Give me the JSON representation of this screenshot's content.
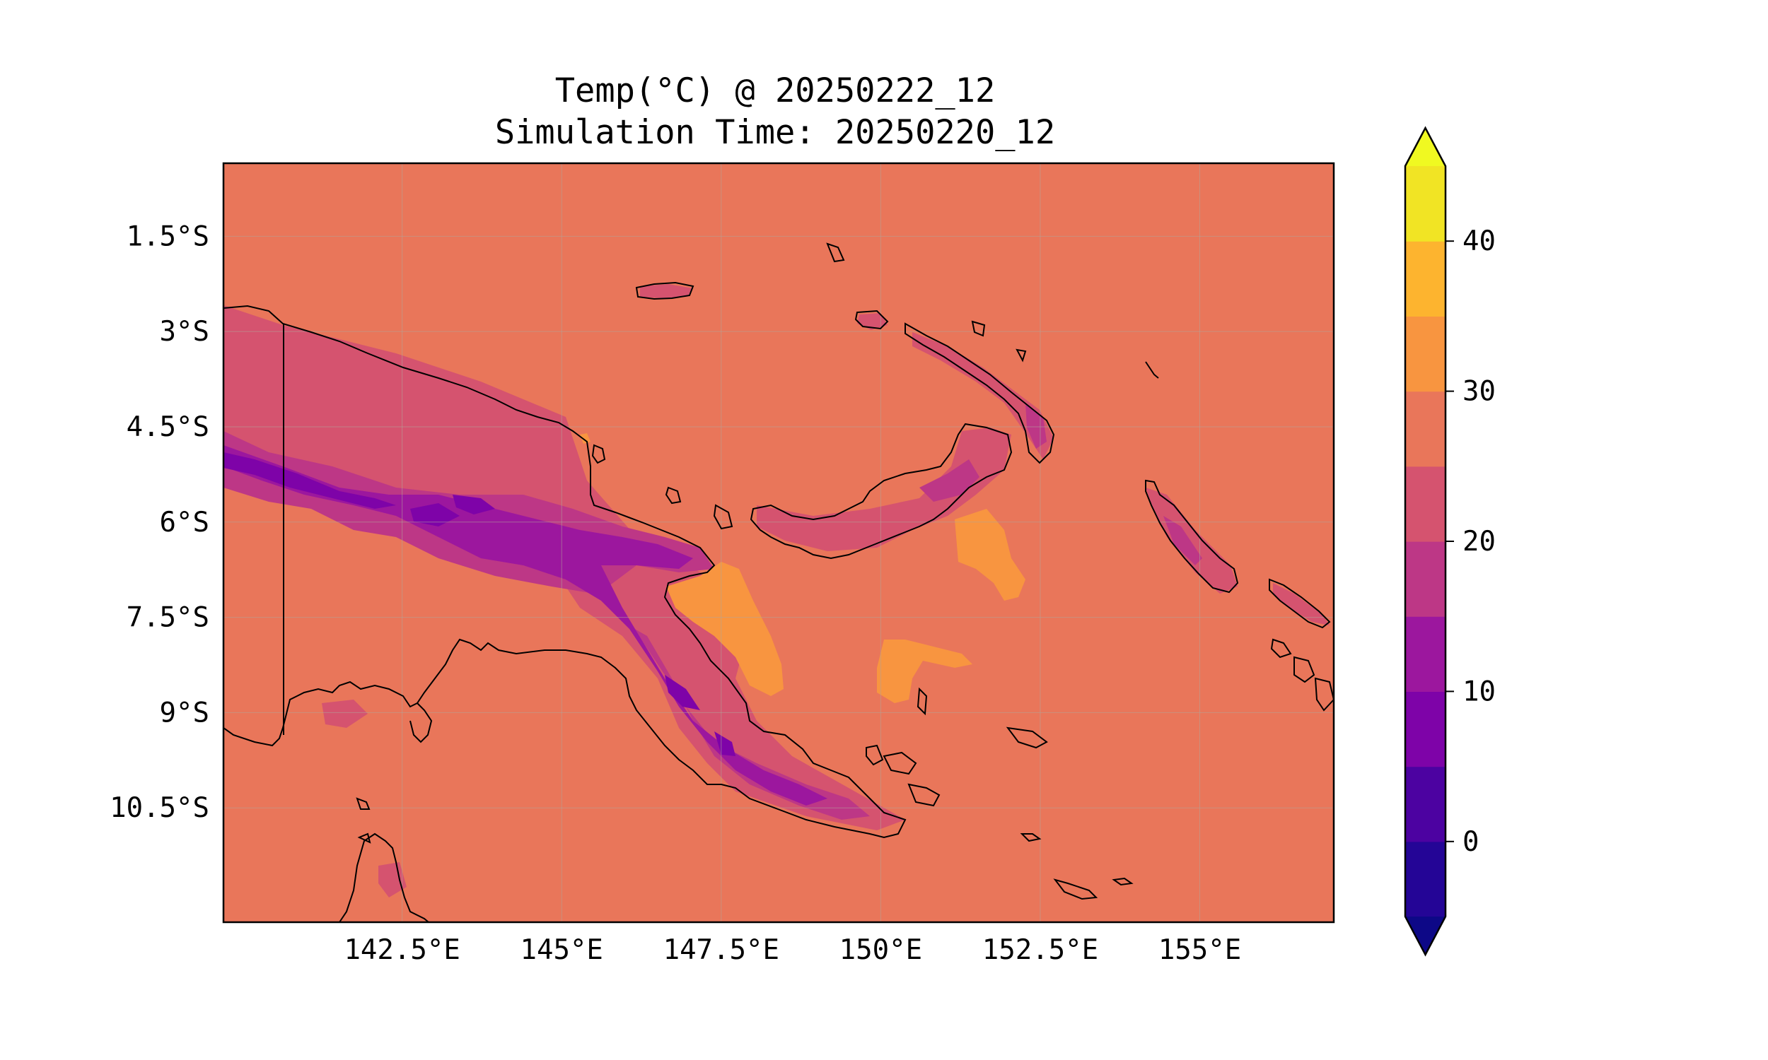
{
  "title": {
    "line1": "Temp(°C) @ 20250222_12",
    "line2": "Simulation Time: 20250220_12"
  },
  "map": {
    "extent": {
      "lon": [
        139.7,
        157.1
      ],
      "lat": [
        -12.3,
        -0.35
      ]
    },
    "background_color": "#e9765a",
    "xticks": [
      {
        "value": 142.5,
        "label": "142.5°E"
      },
      {
        "value": 145,
        "label": "145°E"
      },
      {
        "value": 147.5,
        "label": "147.5°E"
      },
      {
        "value": 150,
        "label": "150°E"
      },
      {
        "value": 152.5,
        "label": "152.5°E"
      },
      {
        "value": 155,
        "label": "155°E"
      }
    ],
    "yticks": [
      {
        "value": -1.5,
        "label": "1.5°S"
      },
      {
        "value": -3,
        "label": "3°S"
      },
      {
        "value": -4.5,
        "label": "4.5°S"
      },
      {
        "value": -6,
        "label": "6°S"
      },
      {
        "value": -7.5,
        "label": "7.5°S"
      },
      {
        "value": -9,
        "label": "9°S"
      },
      {
        "value": -10.5,
        "label": "10.5°S"
      }
    ],
    "gridlines": true
  },
  "colorbar": {
    "range": [
      -5,
      45
    ],
    "extend": "both",
    "under_color": "#0d0887",
    "over_color": "#f0f921",
    "levels": [
      {
        "from": -5,
        "to": 0,
        "color": "#240596"
      },
      {
        "from": 0,
        "to": 5,
        "color": "#4c02a1"
      },
      {
        "from": 5,
        "to": 10,
        "color": "#7e03a8"
      },
      {
        "from": 10,
        "to": 15,
        "color": "#9c179e"
      },
      {
        "from": 15,
        "to": 20,
        "color": "#bd3786"
      },
      {
        "from": 20,
        "to": 25,
        "color": "#d5536f"
      },
      {
        "from": 25,
        "to": 30,
        "color": "#e9765a"
      },
      {
        "from": 30,
        "to": 35,
        "color": "#f89540"
      },
      {
        "from": 35,
        "to": 40,
        "color": "#fdb42f"
      },
      {
        "from": 40,
        "to": 45,
        "color": "#f1e424"
      }
    ],
    "ticks": [
      {
        "value": 0,
        "label": "0"
      },
      {
        "value": 10,
        "label": "10"
      },
      {
        "value": 20,
        "label": "20"
      },
      {
        "value": 30,
        "label": "30"
      },
      {
        "value": 40,
        "label": "40"
      }
    ]
  }
}
